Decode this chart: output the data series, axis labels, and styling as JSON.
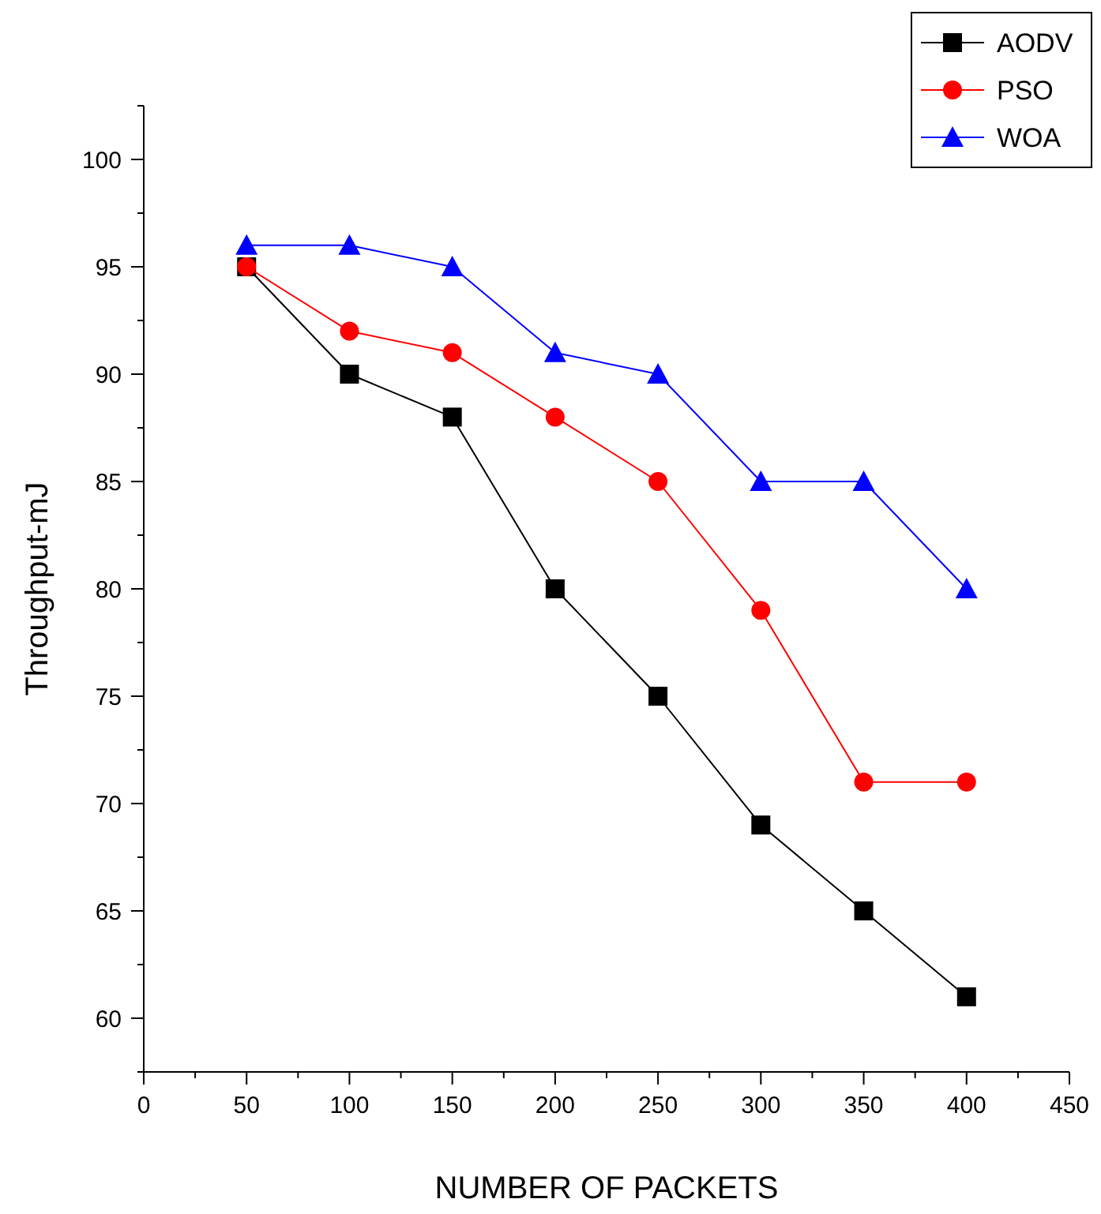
{
  "chart_data": {
    "type": "line",
    "xlabel": "NUMBER OF PACKETS",
    "ylabel": "Throughput-mJ",
    "x": [
      50,
      100,
      150,
      200,
      250,
      300,
      350,
      400
    ],
    "xlim": [
      0,
      450
    ],
    "xticks": [
      0,
      50,
      100,
      150,
      200,
      250,
      300,
      350,
      400,
      450
    ],
    "ylim": [
      57.5,
      102.5
    ],
    "yticks": [
      60,
      65,
      70,
      75,
      80,
      85,
      90,
      95,
      100
    ],
    "legend": "top right",
    "grid": false,
    "series": [
      {
        "name": "AODV",
        "color": "#000000",
        "marker": "square",
        "values": [
          95,
          90,
          88,
          80,
          75,
          69,
          65,
          61
        ]
      },
      {
        "name": "PSO",
        "color": "#ff0000",
        "marker": "circle",
        "values": [
          95,
          92,
          91,
          88,
          85,
          79,
          71,
          71
        ]
      },
      {
        "name": "WOA",
        "color": "#0000ff",
        "marker": "triangle",
        "values": [
          96,
          96,
          95,
          91,
          90,
          85,
          85,
          80
        ]
      }
    ]
  }
}
